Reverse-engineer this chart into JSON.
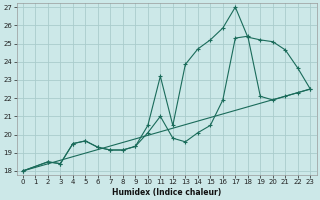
{
  "bg_color": "#cce8e8",
  "grid_color": "#aacccc",
  "line_color": "#1a6b5a",
  "xlabel": "Humidex (Indice chaleur)",
  "xlim": [
    -0.5,
    23.5
  ],
  "ylim": [
    17.8,
    27.2
  ],
  "yticks": [
    18,
    19,
    20,
    21,
    22,
    23,
    24,
    25,
    26,
    27
  ],
  "xticks": [
    0,
    1,
    2,
    3,
    4,
    5,
    6,
    7,
    8,
    9,
    10,
    11,
    12,
    13,
    14,
    15,
    16,
    17,
    18,
    19,
    20,
    21,
    22,
    23
  ],
  "line1_x": [
    0,
    2,
    3,
    4,
    5,
    6,
    7,
    8,
    9,
    10,
    11,
    12,
    13,
    14,
    15,
    16,
    17,
    18,
    19,
    20,
    21,
    22,
    23
  ],
  "line1_y": [
    18.0,
    18.5,
    18.4,
    19.5,
    19.65,
    19.3,
    19.15,
    19.15,
    19.35,
    20.5,
    23.2,
    20.5,
    23.85,
    24.7,
    25.2,
    25.85,
    27.0,
    25.35,
    25.2,
    25.1,
    24.65,
    23.65,
    22.5
  ],
  "line2_x": [
    0,
    2,
    3,
    4,
    5,
    6,
    7,
    8,
    9,
    10,
    11,
    12,
    13,
    14,
    15,
    16,
    17,
    18,
    19,
    20,
    21,
    22,
    23
  ],
  "line2_y": [
    18.0,
    18.5,
    18.4,
    19.5,
    19.65,
    19.3,
    19.15,
    19.15,
    19.35,
    20.1,
    21.0,
    19.8,
    19.6,
    20.1,
    20.5,
    21.9,
    25.3,
    25.4,
    22.1,
    21.9,
    22.1,
    22.3,
    22.5
  ],
  "line3_x": [
    0,
    23
  ],
  "line3_y": [
    18.0,
    22.5
  ]
}
